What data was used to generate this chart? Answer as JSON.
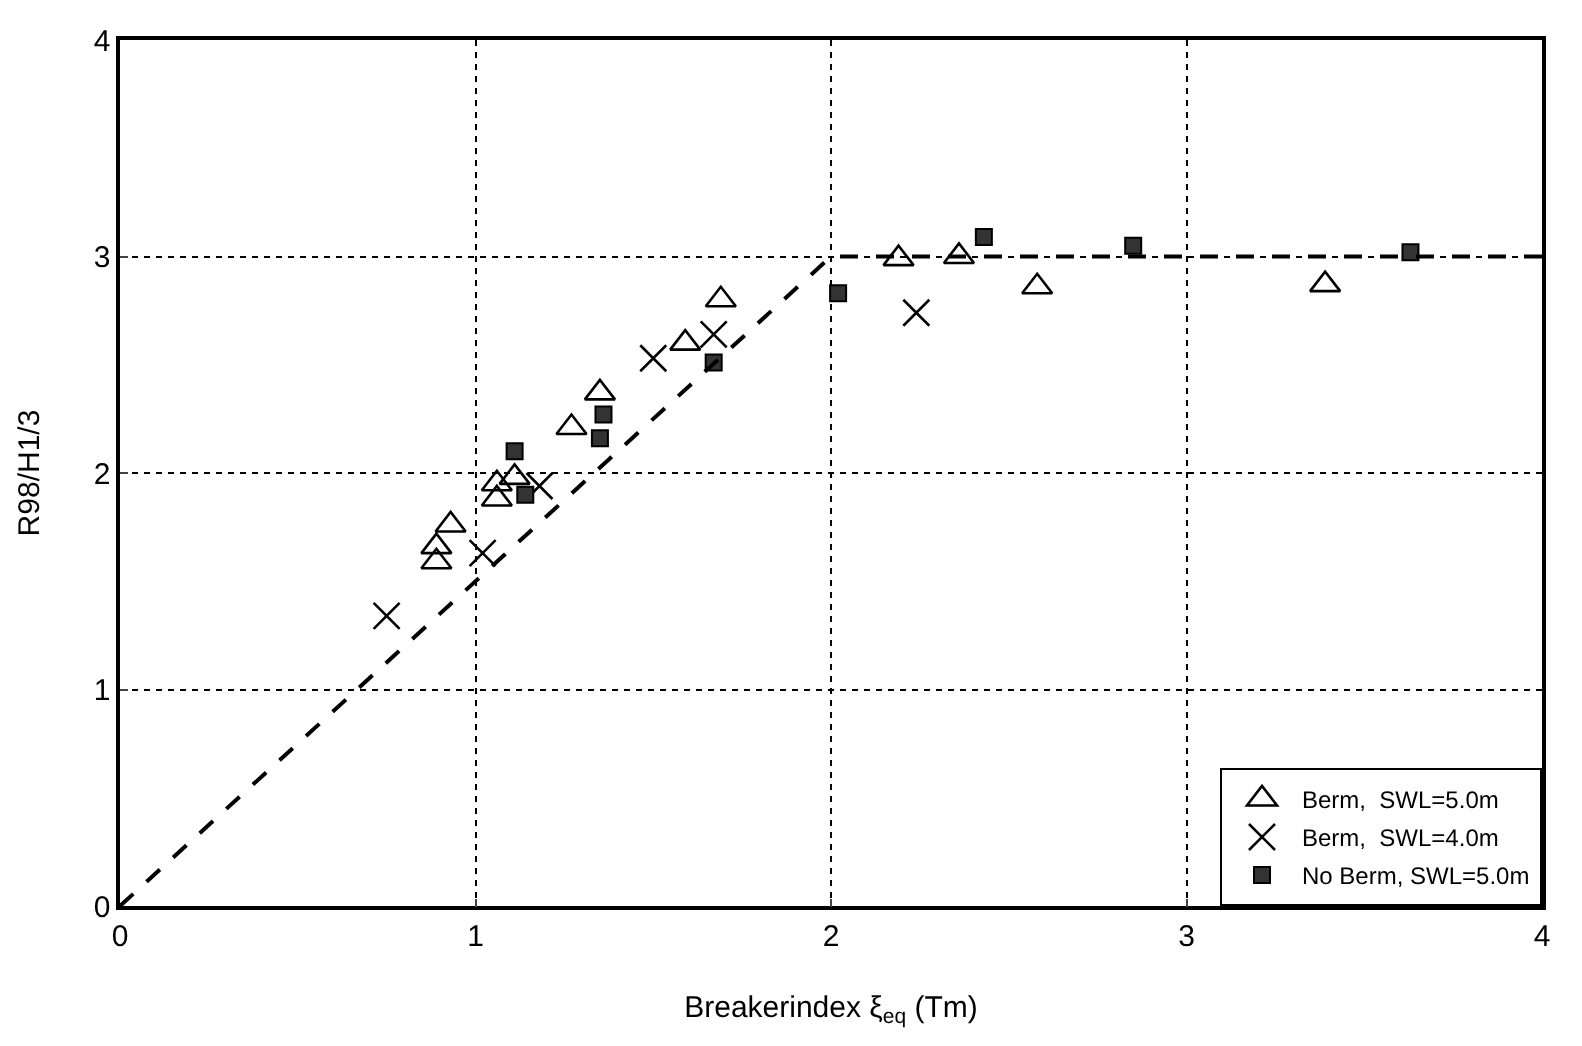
{
  "chart_data": {
    "type": "scatter",
    "xlabel": "Breakerindex ξ$_{eq}$ (Tm)",
    "ylabel": "R98/H1/3",
    "xlim": [
      0,
      4
    ],
    "ylim": [
      0,
      4
    ],
    "xticks": [
      0,
      1,
      2,
      3,
      4
    ],
    "yticks": [
      0,
      1,
      2,
      3,
      4
    ],
    "grid": true,
    "legend": "bottom right",
    "series": [
      {
        "name": "Berm,  SWL=5.0m",
        "color": "#000000",
        "marker": "triangle",
        "x": [
          0.89,
          0.89,
          0.93,
          1.06,
          1.06,
          1.11,
          1.27,
          1.35,
          1.59,
          1.69,
          2.19,
          2.36,
          2.58,
          3.39
        ],
        "values": [
          1.59,
          1.66,
          1.76,
          1.88,
          1.95,
          1.98,
          2.21,
          2.37,
          2.6,
          2.8,
          2.99,
          3.0,
          2.86,
          2.87
        ]
      },
      {
        "name": "Berm,  SWL=4.0m",
        "color": "#000000",
        "marker": "cross",
        "x": [
          0.75,
          1.02,
          1.18,
          1.5,
          1.67,
          2.24
        ],
        "values": [
          1.34,
          1.63,
          1.94,
          2.53,
          2.64,
          2.74
        ]
      },
      {
        "name": "No Berm, SWL=5.0m",
        "color": "#333333",
        "marker": "square",
        "x": [
          1.11,
          1.14,
          1.35,
          1.36,
          1.67,
          2.02,
          2.43,
          2.85,
          3.63
        ],
        "values": [
          2.1,
          1.9,
          2.16,
          2.27,
          2.51,
          2.83,
          3.09,
          3.05,
          3.02
        ]
      },
      {
        "type": "line",
        "color": "#000000",
        "marker": "none",
        "line_style": "dashed",
        "x": [
          0,
          2,
          4
        ],
        "values": [
          0,
          3,
          3
        ]
      }
    ]
  }
}
